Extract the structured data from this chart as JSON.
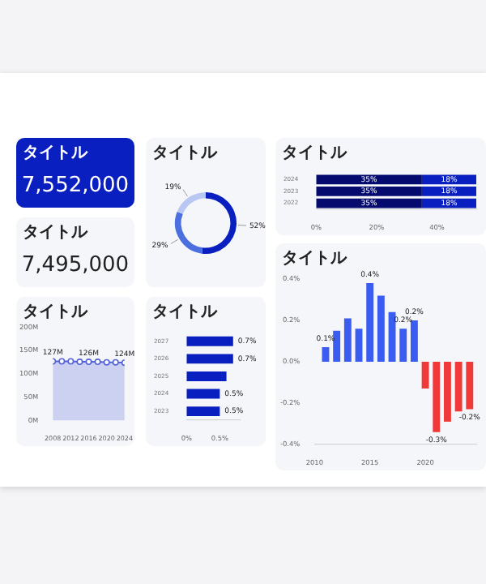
{
  "chart_data": [
    {
      "type": "other",
      "title": "タイトル",
      "annotations": [
        "7,552,000"
      ],
      "color": "#0a1fbf"
    },
    {
      "type": "other",
      "title": "タイトル",
      "annotations": [
        "7,495,000"
      ]
    },
    {
      "type": "donut",
      "title": "タイトル",
      "categories": [
        null,
        null,
        null
      ],
      "values": [
        52,
        29,
        19
      ],
      "colors": [
        "#0a1fbf",
        "#4c6fe0",
        "#b8c8f2"
      ],
      "value_labels": [
        "52%",
        "29%",
        "19%"
      ]
    },
    {
      "type": "bar",
      "title": "タイトル",
      "orientation": "horizontal",
      "stacked": true,
      "categories": [
        "2024",
        "2023",
        "2022"
      ],
      "xlim": [
        0,
        53
      ],
      "xticks": [
        {
          "value": 0,
          "label": "0%"
        },
        {
          "value": 20,
          "label": "20%"
        },
        {
          "value": 40,
          "label": "40%"
        }
      ],
      "series": [
        {
          "color": "#050a6e",
          "values": [
            35,
            35,
            35
          ],
          "value_labels": [
            "35%",
            "35%",
            "35%"
          ]
        },
        {
          "color": "#0a1fbf",
          "values": [
            18,
            18,
            18
          ],
          "value_labels": [
            "18%",
            "18%",
            "18%"
          ]
        }
      ]
    },
    {
      "type": "area",
      "title": "タイトル",
      "x": [
        2008,
        2010,
        2012,
        2014,
        2016,
        2018,
        2020,
        2022,
        2024
      ],
      "xlim": [
        2008,
        2024
      ],
      "xticks": [
        2008,
        2012,
        2016,
        2020,
        2024
      ],
      "ylim": [
        0,
        200
      ],
      "yticks": [
        {
          "value": 0,
          "label": "0M"
        },
        {
          "value": 50,
          "label": "50M"
        },
        {
          "value": 100,
          "label": "100M"
        },
        {
          "value": 150,
          "label": "150M"
        },
        {
          "value": 200,
          "label": "200M"
        }
      ],
      "series": [
        {
          "color": "#5563d8",
          "values": [
            127,
            127,
            127,
            126,
            126,
            126,
            125,
            125,
            124
          ],
          "value_labels": [
            "127M",
            null,
            null,
            null,
            "126M",
            null,
            null,
            null,
            "124M"
          ]
        }
      ],
      "marker": "circle"
    },
    {
      "type": "bar",
      "title": "タイトル",
      "orientation": "horizontal",
      "categories": [
        "2027",
        "2026",
        "2025",
        "2024",
        "2023"
      ],
      "values": [
        0.7,
        0.7,
        0.6,
        0.5,
        0.5
      ],
      "color": "#0a1fbf",
      "value_labels": [
        "0.7%",
        "0.7%",
        null,
        "0.5%",
        "0.5%"
      ],
      "xlim": [
        0,
        0.8
      ],
      "xticks": [
        {
          "value": 0,
          "label": "0%"
        },
        {
          "value": 0.5,
          "label": "0.5%"
        }
      ]
    },
    {
      "type": "bar",
      "title": "タイトル",
      "x": [
        2011,
        2012,
        2013,
        2014,
        2015,
        2016,
        2017,
        2018,
        2019,
        2020,
        2021,
        2022,
        2023,
        2024
      ],
      "values": [
        0.07,
        0.15,
        0.21,
        0.16,
        0.38,
        0.32,
        0.24,
        0.16,
        0.2,
        -0.13,
        -0.34,
        -0.29,
        -0.24,
        -0.23
      ],
      "colors": [
        "#3b5cf0",
        "#3b5cf0",
        "#3b5cf0",
        "#3b5cf0",
        "#3b5cf0",
        "#3b5cf0",
        "#3b5cf0",
        "#3b5cf0",
        "#3b5cf0",
        "#f03a3a",
        "#f03a3a",
        "#f03a3a",
        "#f03a3a",
        "#f03a3a"
      ],
      "value_labels": [
        "0.1%",
        null,
        null,
        null,
        "0.4%",
        null,
        null,
        "0.2%",
        "0.2%",
        null,
        "-0.3%",
        null,
        null,
        "-0.2%"
      ],
      "xlim": [
        2010,
        2024.6
      ],
      "xticks": [
        2010,
        2015,
        2020
      ],
      "ylim": [
        -0.4,
        0.4
      ],
      "yticks": [
        {
          "value": -0.4,
          "label": "-0.4%"
        },
        {
          "value": -0.2,
          "label": "-0.2%"
        },
        {
          "value": 0,
          "label": "0.0%"
        },
        {
          "value": 0.2,
          "label": "0.2%"
        },
        {
          "value": 0.4,
          "label": "0.4%"
        }
      ]
    }
  ]
}
